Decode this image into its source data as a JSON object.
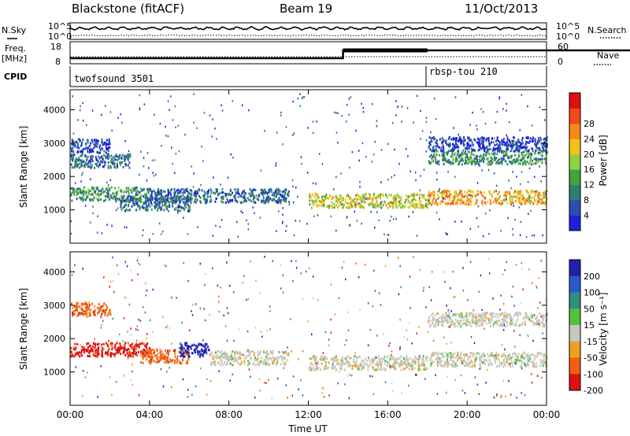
{
  "header": {
    "title": "Blackstone (fitACF)",
    "beam": "Beam 19",
    "date": "11/Oct/2013"
  },
  "side_labels": {
    "nsky": "N.Sky",
    "freq": "Freq.",
    "mhz": "[MHz]",
    "cpid": "CPID",
    "nsearch": "N.Search",
    "nave": "Nave"
  },
  "strip": {
    "noise_ticks": [
      "10^5",
      "10^0"
    ],
    "noise_right_ticks": [
      "10^5",
      "10^0"
    ],
    "freq_ticks": [
      "18",
      "8"
    ],
    "nave_ticks": [
      "60",
      "0"
    ]
  },
  "cpid": {
    "programs": [
      {
        "name": "twofsound 3501",
        "start_hour": 0
      },
      {
        "name": "rbsp-tou 210",
        "start_hour": 18
      }
    ]
  },
  "chart_data": [
    {
      "type": "heatmap",
      "title": "Power",
      "ylabel": "Slant Range [km]",
      "xlabel": "Time UT",
      "xlim": [
        0,
        24
      ],
      "ylim": [
        0,
        4600
      ],
      "yticks": [
        1000,
        2000,
        3000,
        4000
      ],
      "xtick_labels": [
        "00:00",
        "04:00",
        "08:00",
        "12:00",
        "16:00",
        "20:00",
        "00:00"
      ],
      "colorbar": {
        "label": "Power [dB]",
        "ticks": [
          "4",
          "8",
          "12",
          "16",
          "20",
          "24",
          "28"
        ],
        "colors": [
          "#1f1fe0",
          "#2a4fb0",
          "#2e7d6f",
          "#3fa33f",
          "#8fd13f",
          "#f2c21a",
          "#f58a1a",
          "#f24a1a",
          "#e01010"
        ]
      },
      "echo_bands": [
        {
          "t_start": 0,
          "t_end": 2,
          "range_km": 2950,
          "db": 8
        },
        {
          "t_start": 0,
          "t_end": 3,
          "range_km": 2500,
          "db": 10
        },
        {
          "t_start": 0,
          "t_end": 4,
          "range_km": 1500,
          "db": 14
        },
        {
          "t_start": 2.5,
          "t_end": 6,
          "range_km": 1200,
          "db": 12
        },
        {
          "t_start": 4,
          "t_end": 11,
          "range_km": 1450,
          "db": 12
        },
        {
          "t_start": 12,
          "t_end": 18,
          "range_km": 1300,
          "db": 24
        },
        {
          "t_start": 18,
          "t_end": 24,
          "range_km": 1400,
          "db": 26
        },
        {
          "t_start": 18,
          "t_end": 24,
          "range_km": 2600,
          "db": 14
        },
        {
          "t_start": 18,
          "t_end": 24,
          "range_km": 3000,
          "db": 8
        }
      ]
    },
    {
      "type": "heatmap",
      "title": "Velocity",
      "ylabel": "Slant Range [km]",
      "xlabel": "Time UT",
      "xlim": [
        0,
        24
      ],
      "ylim": [
        0,
        4600
      ],
      "yticks": [
        1000,
        2000,
        3000,
        4000
      ],
      "xtick_labels": [
        "00:00",
        "04:00",
        "08:00",
        "12:00",
        "16:00",
        "20:00",
        "00:00"
      ],
      "colorbar": {
        "label": "Velocity [m s⁻¹]",
        "ticks": [
          "200",
          "100",
          "50",
          "15",
          "-15",
          "-50",
          "-100",
          "-200"
        ],
        "colors": [
          "#2020b0",
          "#2a5ac8",
          "#2f8f7f",
          "#55c040",
          "#c8c8c0",
          "#f0a020",
          "#f06010",
          "#e01010"
        ]
      },
      "echo_bands": [
        {
          "t_start": 0,
          "t_end": 2,
          "range_km": 2900,
          "v": -60
        },
        {
          "t_start": 0,
          "t_end": 4,
          "range_km": 1700,
          "v": -100
        },
        {
          "t_start": 3.5,
          "t_end": 6,
          "range_km": 1500,
          "v": -60
        },
        {
          "t_start": 5.5,
          "t_end": 7,
          "range_km": 1700,
          "v": 150
        },
        {
          "t_start": 7,
          "t_end": 11,
          "range_km": 1450,
          "v": 0
        },
        {
          "t_start": 12,
          "t_end": 18,
          "range_km": 1300,
          "v": 0
        },
        {
          "t_start": 18,
          "t_end": 24,
          "range_km": 1400,
          "v": 0
        },
        {
          "t_start": 18,
          "t_end": 24,
          "range_km": 2600,
          "v": 0
        }
      ]
    }
  ]
}
